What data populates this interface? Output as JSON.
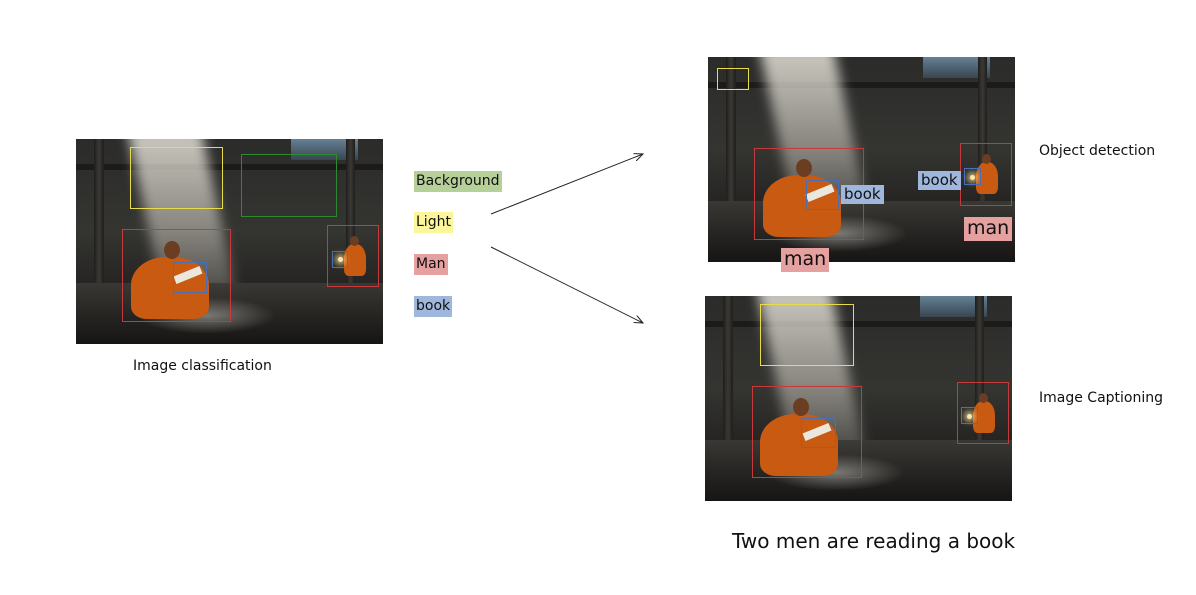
{
  "colors": {
    "background": "#b5d098",
    "light": "#fbf69a",
    "man": "#e5a0a0",
    "book": "#9fb7dc",
    "yellow_box": "#e8dc4a",
    "green_box": "#2f8a2f",
    "red_box": "#c83a3a",
    "blue_box": "#4a6fb3"
  },
  "legend": {
    "background": "Background",
    "light": "Light",
    "man": "Man",
    "book": "book"
  },
  "classification": {
    "caption": "Image classification"
  },
  "detection": {
    "caption": "Object detection",
    "tag_book_1": "book",
    "tag_book_2": "book",
    "tag_man_1": "man",
    "tag_man_2": "man"
  },
  "captioning": {
    "caption": "Image Captioning",
    "sentence": "Two men are reading a book"
  }
}
